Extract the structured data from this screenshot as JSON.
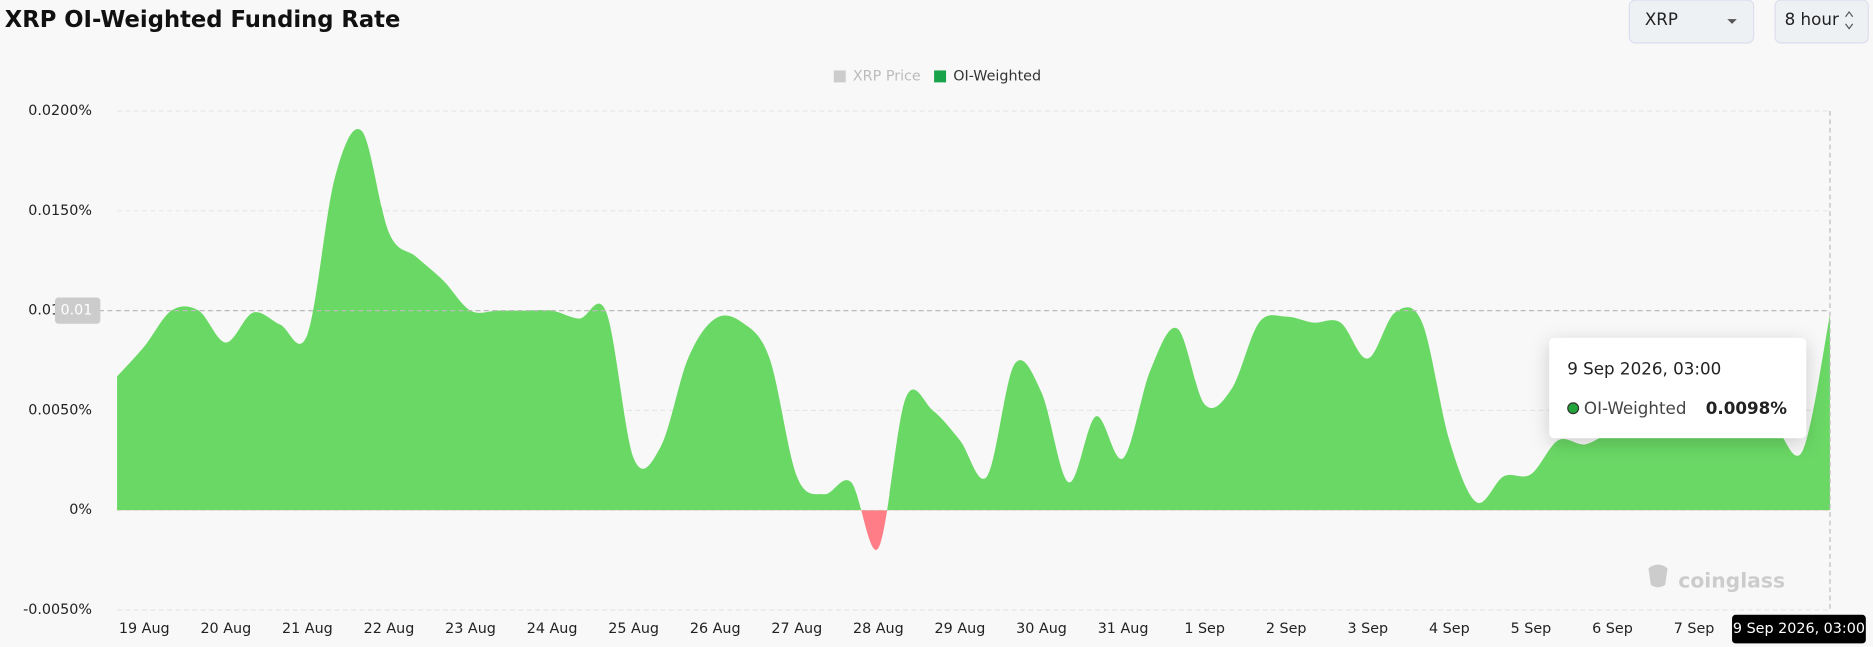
{
  "header": {
    "title": "XRP OI-Weighted Funding Rate",
    "coin_select": "XRP",
    "interval_select": "8 hour"
  },
  "watermark": "coinglass",
  "chart_data": {
    "type": "area",
    "inactive_legend": [
      {
        "name": "XRP Price",
        "color": "#cccccc"
      }
    ],
    "categories": [
      null,
      "19 Aug",
      null,
      null,
      "20 Aug",
      null,
      null,
      "21 Aug",
      null,
      null,
      "22 Aug",
      null,
      null,
      "23 Aug",
      null,
      null,
      "24 Aug",
      null,
      null,
      "25 Aug",
      null,
      null,
      "26 Aug",
      null,
      null,
      "27 Aug",
      null,
      null,
      "28 Aug",
      null,
      null,
      "29 Aug",
      null,
      null,
      "30 Aug",
      null,
      null,
      "31 Aug",
      null,
      null,
      "1 Sep",
      null,
      null,
      "2 Sep",
      null,
      null,
      "3 Sep",
      null,
      null,
      "4 Sep",
      null,
      null,
      "5 Sep",
      null,
      null,
      "6 Sep",
      null,
      null,
      "7 Sep",
      null,
      null,
      "8 Sep",
      null,
      "9 Sep 2026, 03:00"
    ],
    "series": [
      {
        "name": "OI-Weighted",
        "color": "#6ad865",
        "negative_color": "#ff7d87",
        "values": [
          0.0067,
          0.0082,
          0.01,
          0.01,
          0.0084,
          0.0099,
          0.0093,
          0.0088,
          0.0166,
          0.019,
          0.0139,
          0.0127,
          0.0115,
          0.01,
          0.01,
          0.01,
          0.01,
          0.0096,
          0.0099,
          0.0026,
          0.0032,
          0.0076,
          0.0096,
          0.0094,
          0.0076,
          0.0017,
          0.0008,
          0.0014,
          -0.0019,
          0.0056,
          0.005,
          0.0035,
          0.0017,
          0.0073,
          0.0059,
          0.0014,
          0.0047,
          0.0026,
          0.007,
          0.0091,
          0.0053,
          0.0061,
          0.0094,
          0.0097,
          0.0094,
          0.0094,
          0.0076,
          0.0099,
          0.0094,
          0.0035,
          0.0004,
          0.0017,
          0.0018,
          0.0035,
          0.0033,
          0.004,
          0.0045,
          0.005,
          0.005,
          0.0048,
          0.0045,
          0.0041,
          0.003,
          0.0098
        ]
      }
    ],
    "ylim": [
      -0.005,
      0.02
    ],
    "yticks": [
      {
        "value": 0.02,
        "label": "0.0200%"
      },
      {
        "value": 0.015,
        "label": "0.0150%"
      },
      {
        "value": 0.01,
        "label": "0.0100%"
      },
      {
        "value": 0.005,
        "label": "0.0050%"
      },
      {
        "value": 0,
        "label": "0%"
      },
      {
        "value": -0.005,
        "label": "-0.0050%"
      }
    ],
    "grid": true,
    "crosshair": {
      "y_value": 0.01,
      "y_label": "0.01"
    },
    "tooltip": {
      "title": "9 Sep 2026, 03:00",
      "value": 0.0098,
      "value_label": "0.0098%"
    }
  }
}
